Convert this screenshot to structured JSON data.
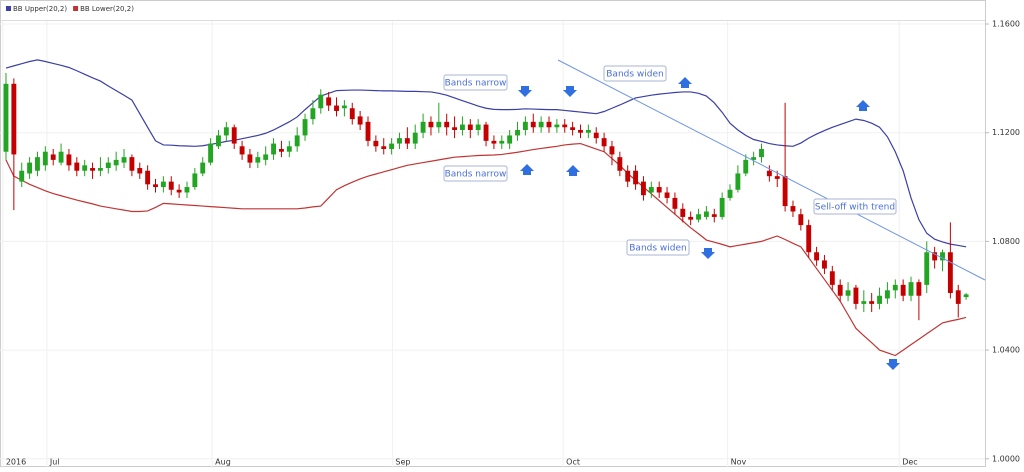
{
  "chart_data": {
    "type": "candlestick",
    "legend_position": "top-left",
    "up_color": "#22a522",
    "down_color": "#c40000",
    "xlim": [
      -0.76,
      124.4
    ],
    "ylim": [
      0.9966,
      1.167
    ],
    "yticks": [
      {
        "value": 1.16,
        "label": "1.1600"
      },
      {
        "value": 1.12,
        "label": "1.1200"
      },
      {
        "value": 1.08,
        "label": "1.0800"
      },
      {
        "value": 1.04,
        "label": "1.0400"
      },
      {
        "value": 1.0,
        "label": "1.0000"
      }
    ],
    "xticks": [
      {
        "value": -0.4,
        "label": "2016"
      },
      {
        "value": 5.2,
        "label": "Jul"
      },
      {
        "value": 26.2,
        "label": "Aug"
      },
      {
        "value": 49.1,
        "label": "Sep"
      },
      {
        "value": 70.8,
        "label": "Oct"
      },
      {
        "value": 91.7,
        "label": "Nov"
      },
      {
        "value": 113.5,
        "label": "Dec"
      }
    ],
    "grid": true,
    "annotations": [
      "Bands narrow",
      "Bands widen",
      "Bands narrow",
      "Sell-off with trend",
      "Bands widen"
    ],
    "x": [
      0,
      1,
      2,
      3,
      4,
      5,
      6,
      7,
      8,
      9,
      10,
      11,
      12,
      13,
      14,
      15,
      16,
      17,
      18,
      19,
      20,
      21,
      22,
      23,
      24,
      25,
      26,
      27,
      28,
      29,
      30,
      31,
      32,
      33,
      34,
      35,
      36,
      37,
      38,
      39,
      40,
      41,
      42,
      43,
      44,
      45,
      46,
      47,
      48,
      49,
      50,
      51,
      52,
      53,
      54,
      55,
      56,
      57,
      58,
      59,
      60,
      61,
      62,
      63,
      64,
      65,
      66,
      67,
      68,
      69,
      70,
      71,
      72,
      73,
      74,
      75,
      76,
      77,
      78,
      79,
      80,
      81,
      82,
      83,
      84,
      85,
      86,
      87,
      88,
      89,
      90,
      91,
      92,
      93,
      94,
      95,
      96,
      97,
      98,
      99,
      100,
      101,
      102,
      103,
      104,
      105,
      106,
      107,
      108,
      109,
      110,
      111,
      112,
      113,
      114,
      115,
      116,
      117,
      118,
      119,
      120,
      121,
      122
    ],
    "open": [
      1.113,
      1.138,
      1.102,
      1.105,
      1.106,
      1.108,
      1.112,
      1.109,
      1.112,
      1.109,
      1.106,
      1.107,
      1.106,
      1.107,
      1.108,
      1.109,
      1.111,
      1.107,
      1.106,
      1.101,
      1.1,
      1.102,
      1.099,
      1.098,
      1.1,
      1.105,
      1.109,
      1.115,
      1.119,
      1.122,
      1.115,
      1.112,
      1.109,
      1.11,
      1.112,
      1.114,
      1.113,
      1.115,
      1.119,
      1.125,
      1.129,
      1.133,
      1.13,
      1.129,
      1.129,
      1.126,
      1.124,
      1.117,
      1.115,
      1.114,
      1.116,
      1.118,
      1.116,
      1.12,
      1.124,
      1.122,
      1.124,
      1.122,
      1.121,
      1.123,
      1.121,
      1.123,
      1.117,
      1.116,
      1.116,
      1.119,
      1.121,
      1.124,
      1.122,
      1.124,
      1.122,
      1.123,
      1.122,
      1.121,
      1.12,
      1.12,
      1.118,
      1.115,
      1.111,
      1.106,
      1.106,
      1.102,
      1.098,
      1.1,
      1.098,
      1.096,
      1.092,
      1.089,
      1.088,
      1.089,
      1.09,
      1.089,
      1.096,
      1.099,
      1.105,
      1.11,
      1.111,
      1.106,
      1.104,
      1.104,
      1.093,
      1.09,
      1.086,
      1.076,
      1.073,
      1.069,
      1.064,
      1.06,
      1.063,
      1.057,
      1.058,
      1.057,
      1.059,
      1.062,
      1.064,
      1.06,
      1.065,
      1.064,
      1.076,
      1.073,
      1.076,
      1.062,
      1.0595
    ],
    "high": [
      1.142,
      1.14,
      1.109,
      1.111,
      1.113,
      1.115,
      1.114,
      1.116,
      1.114,
      1.111,
      1.11,
      1.109,
      1.111,
      1.111,
      1.113,
      1.114,
      1.112,
      1.109,
      1.108,
      1.103,
      1.104,
      1.104,
      1.101,
      1.102,
      1.107,
      1.111,
      1.118,
      1.121,
      1.124,
      1.123,
      1.117,
      1.114,
      1.113,
      1.115,
      1.118,
      1.117,
      1.117,
      1.122,
      1.127,
      1.132,
      1.136,
      1.135,
      1.133,
      1.132,
      1.131,
      1.128,
      1.126,
      1.119,
      1.118,
      1.118,
      1.12,
      1.122,
      1.123,
      1.127,
      1.126,
      1.131,
      1.127,
      1.126,
      1.126,
      1.125,
      1.125,
      1.124,
      1.119,
      1.119,
      1.121,
      1.124,
      1.126,
      1.127,
      1.126,
      1.126,
      1.125,
      1.125,
      1.124,
      1.123,
      1.123,
      1.122,
      1.12,
      1.117,
      1.113,
      1.108,
      1.108,
      1.104,
      1.102,
      1.102,
      1.1,
      1.098,
      1.094,
      1.091,
      1.092,
      1.093,
      1.092,
      1.098,
      1.101,
      1.108,
      1.112,
      1.113,
      1.116,
      1.108,
      1.106,
      1.131,
      1.095,
      1.092,
      1.088,
      1.078,
      1.075,
      1.071,
      1.066,
      1.065,
      1.064,
      1.062,
      1.061,
      1.063,
      1.065,
      1.066,
      1.066,
      1.067,
      1.066,
      1.08,
      1.078,
      1.077,
      1.087,
      1.064,
      1.061
    ],
    "low": [
      1.11,
      1.0915,
      1.1,
      1.103,
      1.104,
      1.106,
      1.108,
      1.108,
      1.106,
      1.104,
      1.104,
      1.103,
      1.104,
      1.105,
      1.106,
      1.107,
      1.104,
      1.103,
      1.099,
      1.098,
      1.098,
      1.097,
      1.096,
      1.096,
      1.099,
      1.104,
      1.108,
      1.114,
      1.117,
      1.114,
      1.11,
      1.107,
      1.107,
      1.108,
      1.11,
      1.111,
      1.111,
      1.113,
      1.117,
      1.123,
      1.127,
      1.128,
      1.126,
      1.126,
      1.123,
      1.121,
      1.115,
      1.113,
      1.112,
      1.112,
      1.114,
      1.114,
      1.114,
      1.118,
      1.119,
      1.12,
      1.119,
      1.118,
      1.119,
      1.118,
      1.119,
      1.115,
      1.114,
      1.114,
      1.114,
      1.117,
      1.119,
      1.12,
      1.12,
      1.12,
      1.12,
      1.12,
      1.119,
      1.118,
      1.118,
      1.116,
      1.113,
      1.108,
      1.104,
      1.1,
      1.099,
      1.095,
      1.096,
      1.096,
      1.094,
      1.09,
      1.087,
      1.086,
      1.087,
      1.088,
      1.087,
      1.088,
      1.095,
      1.098,
      1.104,
      1.108,
      1.109,
      1.102,
      1.1,
      1.091,
      1.089,
      1.084,
      1.074,
      1.071,
      1.068,
      1.062,
      1.058,
      1.058,
      1.055,
      1.054,
      1.054,
      1.055,
      1.057,
      1.059,
      1.058,
      1.058,
      1.051,
      1.061,
      1.07,
      1.069,
      1.059,
      1.052,
      1.0585
    ],
    "close": [
      1.138,
      1.112,
      1.106,
      1.109,
      1.111,
      1.113,
      1.11,
      1.113,
      1.108,
      1.106,
      1.108,
      1.106,
      1.107,
      1.109,
      1.11,
      1.111,
      1.106,
      1.105,
      1.101,
      1.1,
      1.102,
      1.099,
      1.098,
      1.1,
      1.105,
      1.109,
      1.116,
      1.119,
      1.122,
      1.116,
      1.112,
      1.109,
      1.111,
      1.112,
      1.116,
      1.113,
      1.115,
      1.119,
      1.125,
      1.129,
      1.134,
      1.13,
      1.128,
      1.13,
      1.125,
      1.123,
      1.117,
      1.115,
      1.114,
      1.116,
      1.118,
      1.116,
      1.12,
      1.124,
      1.122,
      1.124,
      1.122,
      1.121,
      1.123,
      1.121,
      1.123,
      1.117,
      1.116,
      1.117,
      1.119,
      1.121,
      1.124,
      1.122,
      1.124,
      1.122,
      1.123,
      1.122,
      1.121,
      1.12,
      1.121,
      1.118,
      1.115,
      1.112,
      1.106,
      1.102,
      1.101,
      1.097,
      1.1,
      1.098,
      1.096,
      1.092,
      1.089,
      1.088,
      1.09,
      1.091,
      1.089,
      1.096,
      1.099,
      1.105,
      1.11,
      1.111,
      1.114,
      1.104,
      1.103,
      1.093,
      1.091,
      1.086,
      1.076,
      1.073,
      1.07,
      1.064,
      1.06,
      1.062,
      1.057,
      1.058,
      1.057,
      1.06,
      1.062,
      1.064,
      1.06,
      1.065,
      1.06,
      1.076,
      1.073,
      1.076,
      1.061,
      1.057,
      1.0605
    ],
    "series": [
      {
        "name": "BB Upper(20,2)",
        "color": "#3b3fa6",
        "values": [
          1.1438,
          1.1446,
          1.1454,
          1.1462,
          1.1468,
          1.1462,
          1.1455,
          1.1448,
          1.144,
          1.1428,
          1.1415,
          1.1402,
          1.139,
          1.1372,
          1.1355,
          1.1338,
          1.132,
          1.127,
          1.122,
          1.117,
          1.1155,
          1.1154,
          1.1152,
          1.1151,
          1.115,
          1.1152,
          1.1157,
          1.1162,
          1.1168,
          1.1172,
          1.1178,
          1.1184,
          1.119,
          1.1198,
          1.121,
          1.1225,
          1.124,
          1.1258,
          1.1285,
          1.131,
          1.1335,
          1.1345,
          1.1355,
          1.1356,
          1.1357,
          1.1357,
          1.1356,
          1.1355,
          1.1354,
          1.1354,
          1.1353,
          1.1352,
          1.1352,
          1.1351,
          1.135,
          1.1345,
          1.1338,
          1.1328,
          1.1318,
          1.1308,
          1.1298,
          1.129,
          1.1286,
          1.1285,
          1.1285,
          1.1286,
          1.1288,
          1.1287,
          1.1286,
          1.1285,
          1.1285,
          1.1282,
          1.1279,
          1.1276,
          1.1273,
          1.127,
          1.1278,
          1.129,
          1.1302,
          1.1315,
          1.1328,
          1.1333,
          1.1338,
          1.1342,
          1.1345,
          1.1348,
          1.135,
          1.135,
          1.1345,
          1.1335,
          1.131,
          1.1275,
          1.1235,
          1.121,
          1.119,
          1.1175,
          1.1168,
          1.116,
          1.1155,
          1.1152,
          1.115,
          1.1162,
          1.118,
          1.1195,
          1.1208,
          1.122,
          1.123,
          1.124,
          1.125,
          1.1245,
          1.1235,
          1.122,
          1.1185,
          1.113,
          1.106,
          1.096,
          1.088,
          1.083,
          1.0808,
          1.0798,
          1.079,
          1.0785,
          1.078
        ]
      },
      {
        "name": "BB Lower(20,2)",
        "color": "#c23434",
        "values": [
          1.11,
          1.104,
          1.1025,
          1.101,
          1.0998,
          1.0986,
          1.0976,
          1.0968,
          1.096,
          1.0952,
          1.0945,
          1.0938,
          1.093,
          1.0925,
          1.092,
          1.0915,
          1.091,
          1.091,
          1.0912,
          1.0925,
          1.094,
          1.0938,
          1.0936,
          1.0934,
          1.0932,
          1.093,
          1.0928,
          1.0926,
          1.0924,
          1.0922,
          1.092,
          1.092,
          1.092,
          1.092,
          1.092,
          1.092,
          1.092,
          1.092,
          1.0923,
          1.0927,
          1.093,
          1.096,
          1.099,
          1.1005,
          1.1018,
          1.103,
          1.104,
          1.1048,
          1.1056,
          1.1064,
          1.1072,
          1.108,
          1.1085,
          1.109,
          1.1095,
          1.11,
          1.1105,
          1.111,
          1.1112,
          1.1114,
          1.1116,
          1.1117,
          1.1118,
          1.112,
          1.1124,
          1.1128,
          1.1133,
          1.1138,
          1.1142,
          1.1146,
          1.115,
          1.1155,
          1.1158,
          1.116,
          1.115,
          1.114,
          1.113,
          1.1105,
          1.108,
          1.105,
          1.1025,
          1.1,
          1.0975,
          1.095,
          1.0925,
          1.09,
          1.0875,
          1.085,
          1.0828,
          1.0805,
          1.0797,
          1.0789,
          1.078,
          1.0785,
          1.079,
          1.0795,
          1.08,
          1.081,
          1.082,
          1.0807,
          1.0793,
          1.078,
          1.074,
          1.07,
          1.066,
          1.062,
          1.058,
          1.053,
          1.048,
          1.0453,
          1.0427,
          1.04,
          1.039,
          1.038,
          1.04,
          1.042,
          1.044,
          1.046,
          1.048,
          1.05,
          1.0507,
          1.0513,
          1.052
        ]
      }
    ]
  }
}
